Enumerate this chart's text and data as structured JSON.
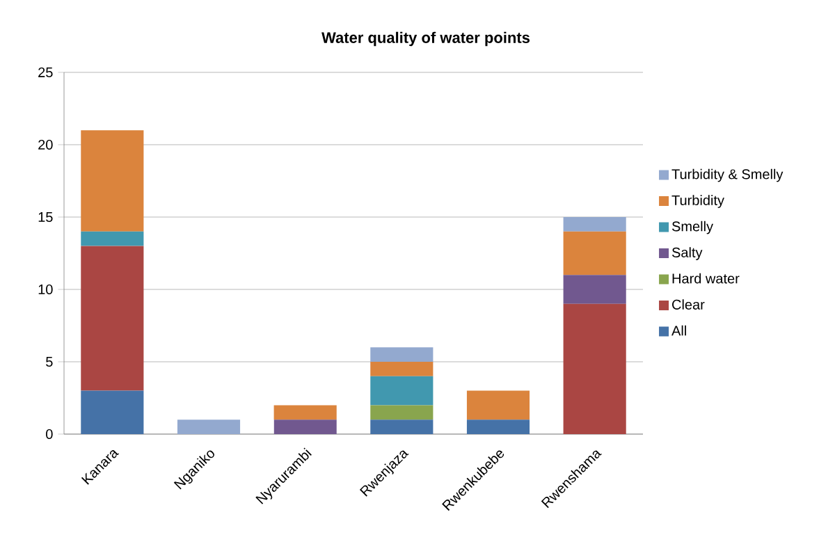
{
  "chart_data": {
    "type": "bar",
    "title": "Water quality of water points",
    "stacked": true,
    "categories": [
      "Kanara",
      "Nganiko",
      "Nyarurambi",
      "Rwenjaza",
      "Rwenkubebe",
      "Rwenshama"
    ],
    "series": [
      {
        "name": "All",
        "color": "#4572a7",
        "values": [
          3,
          0,
          0,
          1,
          1,
          0
        ]
      },
      {
        "name": "Clear",
        "color": "#aa4643",
        "values": [
          10,
          0,
          0,
          0,
          0,
          9
        ]
      },
      {
        "name": "Hard water",
        "color": "#89a54e",
        "values": [
          0,
          0,
          0,
          1,
          0,
          0
        ]
      },
      {
        "name": "Salty",
        "color": "#71588f",
        "values": [
          0,
          0,
          1,
          0,
          0,
          2
        ]
      },
      {
        "name": "Smelly",
        "color": "#4198af",
        "values": [
          1,
          0,
          0,
          2,
          0,
          0
        ]
      },
      {
        "name": "Turbidity",
        "color": "#db843d",
        "values": [
          7,
          0,
          1,
          1,
          2,
          3
        ]
      },
      {
        "name": "Turbidity & Smelly",
        "color": "#93a9cf",
        "values": [
          0,
          1,
          0,
          1,
          0,
          1
        ]
      }
    ],
    "ylim": [
      0,
      25
    ],
    "yticks": [
      0,
      5,
      10,
      15,
      20,
      25
    ],
    "grid": "y",
    "legend": "right"
  }
}
